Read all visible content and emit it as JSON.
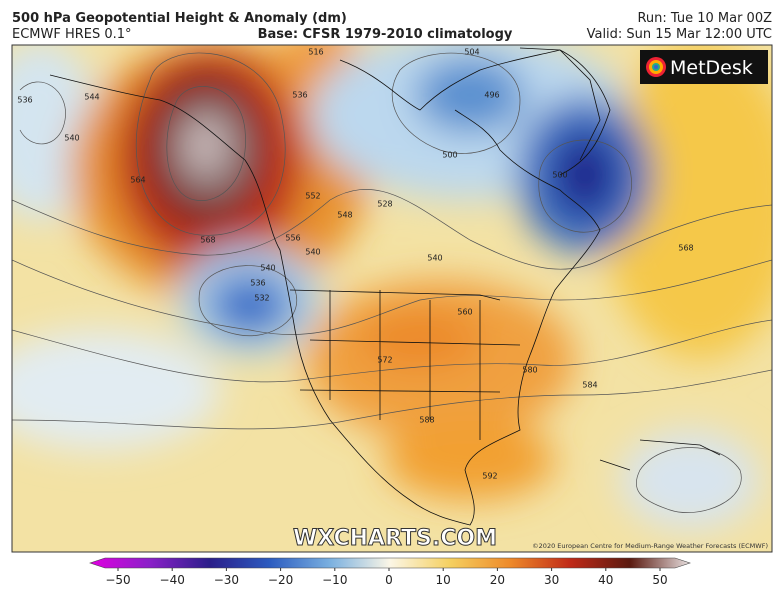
{
  "header": {
    "title": "500 hPa Geopotential Height & Anomaly (dm)",
    "model": "ECMWF HRES 0.1°",
    "base": "Base: CFSR 1979-2010 climatology",
    "run": "Run: Tue 10 Mar 00Z",
    "valid": "Valid: Sun 15 Mar 12:00 UTC"
  },
  "map": {
    "logo": "MetDesk",
    "watermark": "WXCHARTS.COM",
    "credit": "©2020 European Centre for Medium-Range Weather Forecasts (ECMWF)",
    "contour_labels": [
      "536",
      "540",
      "544",
      "564",
      "568",
      "552",
      "556",
      "548",
      "540",
      "540",
      "536",
      "532",
      "536",
      "516",
      "504",
      "496",
      "500",
      "528",
      "540",
      "560",
      "572",
      "580",
      "584",
      "588",
      "592",
      "568",
      "500"
    ]
  },
  "colorbar": {
    "lim": [
      -50,
      50
    ],
    "ticks": [
      {
        "value": -50,
        "label": "−50"
      },
      {
        "value": -40,
        "label": "−40"
      },
      {
        "value": -30,
        "label": "−30"
      },
      {
        "value": -20,
        "label": "−20"
      },
      {
        "value": -10,
        "label": "−10"
      },
      0,
      10,
      20,
      30,
      40,
      50
    ]
  }
}
